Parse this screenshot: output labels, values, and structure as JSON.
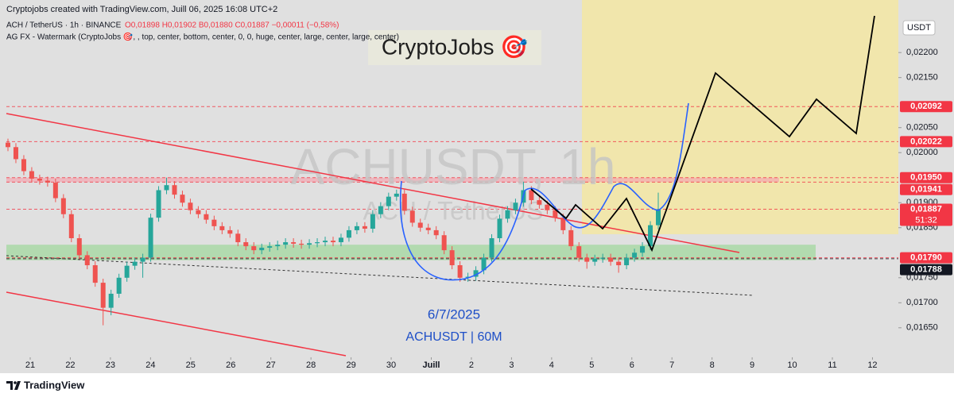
{
  "chart_data": {
    "type": "candlestick",
    "header": "Cryptojobs created with TradingView.com, Juill 06, 2025 16:08 UTC+2",
    "symbol_line": "ACH / TetherUS · 1h · BINANCE",
    "ohlc_line": "O0,01898  H0,01902  B0,01880  C0,01887  −0,00011 (−0,58%)",
    "indicator_line": "AG FX - Watermark (CryptoJobs 🎯, , top, center, bottom, center, 0, 0, huge, center, large, center, large, center)",
    "brand": "CryptoJobs 🎯",
    "watermark": "ACHUSDT, 1h",
    "watermark_sub": "ACH / TetherUS",
    "annotation_date": "6/7/2025",
    "annotation_symbol": "ACHUSDT | 60M",
    "currency": "USDT",
    "footer": "TradingView",
    "up_color": "#26a69a",
    "down_color": "#ef5350",
    "ylim": [
      0.01591,
      0.02305
    ],
    "yticks": [
      {
        "value": 0.022,
        "label": "0,02200"
      },
      {
        "value": 0.0215,
        "label": "0,02150"
      },
      {
        "value": 0.0205,
        "label": "0,02050"
      },
      {
        "value": 0.02,
        "label": "0,02000"
      },
      {
        "value": 0.019,
        "label": "0,01900"
      },
      {
        "value": 0.0185,
        "label": "0,01850"
      },
      {
        "value": 0.0175,
        "label": "0,01750"
      },
      {
        "value": 0.017,
        "label": "0,01700"
      },
      {
        "value": 0.0165,
        "label": "0,01650"
      }
    ],
    "categories": [
      "21",
      "22",
      "23",
      "24",
      "25",
      "26",
      "27",
      "28",
      "29",
      "30",
      "Juill",
      "2",
      "3",
      "4",
      "5",
      "6",
      "7",
      "8",
      "9",
      "10",
      "11",
      "12"
    ],
    "price_labels": [
      {
        "value": 0.02092,
        "label": "0,02092",
        "color": "#f23645"
      },
      {
        "value": 0.02022,
        "label": "0,02022",
        "color": "#f23645"
      },
      {
        "value": 0.0195,
        "label": "0,01950",
        "color": "#f23645"
      },
      {
        "value": 0.01941,
        "label": "0,01941",
        "color": "#f23645"
      },
      {
        "value": 0.01887,
        "label": "0,01887",
        "color": "#f23645",
        "countdown": "51:32"
      },
      {
        "value": 0.0179,
        "label": "0,01790",
        "color": "#f23645"
      },
      {
        "value": 0.01788,
        "label": "0,01788",
        "color": "#131722"
      }
    ],
    "target_zone": {
      "bottom": 0.01837,
      "color": "#f3e7a6"
    },
    "support_zone": {
      "top": 0.01816,
      "bottom": 0.01785,
      "color": "#a9d8a6"
    },
    "candles": [
      [
        0.0202,
        0.02028,
        0.02003,
        0.02011
      ],
      [
        0.02011,
        0.02019,
        0.01979,
        0.01987
      ],
      [
        0.01987,
        0.01995,
        0.01955,
        0.01963
      ],
      [
        0.01963,
        0.01971,
        0.0194,
        0.01948
      ],
      [
        0.01948,
        0.01956,
        0.01936,
        0.01944
      ],
      [
        0.01944,
        0.01952,
        0.01932,
        0.0194
      ],
      [
        0.0194,
        0.01948,
        0.01901,
        0.01909
      ],
      [
        0.01909,
        0.01917,
        0.01869,
        0.01877
      ],
      [
        0.01877,
        0.01885,
        0.01821,
        0.01829
      ],
      [
        0.01829,
        0.01837,
        0.01787,
        0.01795
      ],
      [
        0.01795,
        0.01803,
        0.01767,
        0.01775
      ],
      [
        0.01775,
        0.01783,
        0.01732,
        0.0174
      ],
      [
        0.0174,
        0.01748,
        0.01655,
        0.0169
      ],
      [
        0.0169,
        0.01726,
        0.01675,
        0.01718
      ],
      [
        0.01718,
        0.01758,
        0.0171,
        0.0175
      ],
      [
        0.0175,
        0.01782,
        0.01742,
        0.01774
      ],
      [
        0.01774,
        0.0179,
        0.01766,
        0.01782
      ],
      [
        0.01782,
        0.01798,
        0.0175,
        0.0179
      ],
      [
        0.0179,
        0.01878,
        0.01782,
        0.0187
      ],
      [
        0.0187,
        0.01933,
        0.01862,
        0.01925
      ],
      [
        0.01925,
        0.0195,
        0.01917,
        0.01935
      ],
      [
        0.01935,
        0.01943,
        0.01908,
        0.01916
      ],
      [
        0.01916,
        0.01924,
        0.01892,
        0.019
      ],
      [
        0.019,
        0.01908,
        0.01877,
        0.01885
      ],
      [
        0.01885,
        0.01893,
        0.01869,
        0.01877
      ],
      [
        0.01877,
        0.01885,
        0.01858,
        0.01866
      ],
      [
        0.01866,
        0.01874,
        0.01845,
        0.01853
      ],
      [
        0.01853,
        0.01861,
        0.01837,
        0.01845
      ],
      [
        0.01845,
        0.01853,
        0.0183,
        0.01838
      ],
      [
        0.01838,
        0.01846,
        0.01813,
        0.01821
      ],
      [
        0.01821,
        0.01829,
        0.01805,
        0.01813
      ],
      [
        0.01813,
        0.01821,
        0.01797,
        0.01805
      ],
      [
        0.01805,
        0.01818,
        0.01797,
        0.0181
      ],
      [
        0.0181,
        0.01821,
        0.01802,
        0.01813
      ],
      [
        0.01813,
        0.01824,
        0.01805,
        0.01816
      ],
      [
        0.01816,
        0.01829,
        0.01808,
        0.01821
      ],
      [
        0.01821,
        0.01829,
        0.0181,
        0.01818
      ],
      [
        0.01818,
        0.01826,
        0.01808,
        0.01816
      ],
      [
        0.01816,
        0.01827,
        0.01808,
        0.01819
      ],
      [
        0.01819,
        0.01829,
        0.01811,
        0.01821
      ],
      [
        0.01821,
        0.01832,
        0.01813,
        0.01824
      ],
      [
        0.01824,
        0.01832,
        0.01813,
        0.01821
      ],
      [
        0.01821,
        0.01838,
        0.01813,
        0.0183
      ],
      [
        0.0183,
        0.01853,
        0.01822,
        0.01845
      ],
      [
        0.01845,
        0.01861,
        0.01837,
        0.01853
      ],
      [
        0.01853,
        0.01861,
        0.0184,
        0.01848
      ],
      [
        0.01848,
        0.01885,
        0.0184,
        0.01877
      ],
      [
        0.01877,
        0.01901,
        0.01869,
        0.01893
      ],
      [
        0.01893,
        0.0192,
        0.01885,
        0.01912
      ],
      [
        0.01912,
        0.01926,
        0.01904,
        0.01918
      ],
      [
        0.01918,
        0.01926,
        0.01876,
        0.01884
      ],
      [
        0.01884,
        0.01892,
        0.01852,
        0.0186
      ],
      [
        0.0186,
        0.01868,
        0.01842,
        0.0185
      ],
      [
        0.0185,
        0.01858,
        0.01837,
        0.01845
      ],
      [
        0.01845,
        0.01853,
        0.01827,
        0.01835
      ],
      [
        0.01835,
        0.01843,
        0.01797,
        0.01805
      ],
      [
        0.01805,
        0.01813,
        0.01767,
        0.01775
      ],
      [
        0.01775,
        0.01783,
        0.01742,
        0.0175
      ],
      [
        0.0175,
        0.0176,
        0.01742,
        0.01752
      ],
      [
        0.01752,
        0.01773,
        0.01744,
        0.01765
      ],
      [
        0.01765,
        0.01798,
        0.01757,
        0.0179
      ],
      [
        0.0179,
        0.01837,
        0.01782,
        0.01829
      ],
      [
        0.01829,
        0.01876,
        0.01821,
        0.01868
      ],
      [
        0.01868,
        0.01893,
        0.0186,
        0.01885
      ],
      [
        0.01885,
        0.01908,
        0.01877,
        0.019
      ],
      [
        0.019,
        0.01942,
        0.01892,
        0.01925
      ],
      [
        0.01925,
        0.01933,
        0.01897,
        0.01905
      ],
      [
        0.01905,
        0.01913,
        0.01888,
        0.01896
      ],
      [
        0.01896,
        0.01904,
        0.01877,
        0.01885
      ],
      [
        0.01885,
        0.01893,
        0.01862,
        0.0187
      ],
      [
        0.0187,
        0.01878,
        0.01837,
        0.01845
      ],
      [
        0.01845,
        0.01853,
        0.01805,
        0.01813
      ],
      [
        0.01813,
        0.01821,
        0.01782,
        0.0179
      ],
      [
        0.0179,
        0.01798,
        0.01768,
        0.01782
      ],
      [
        0.01782,
        0.01796,
        0.01774,
        0.01788
      ],
      [
        0.01788,
        0.01798,
        0.0178,
        0.0179
      ],
      [
        0.0179,
        0.01798,
        0.01774,
        0.01782
      ],
      [
        0.01782,
        0.0179,
        0.0176,
        0.01775
      ],
      [
        0.01775,
        0.01798,
        0.01767,
        0.0179
      ],
      [
        0.0179,
        0.01808,
        0.01782,
        0.018
      ],
      [
        0.018,
        0.01821,
        0.01792,
        0.01813
      ],
      [
        0.01813,
        0.01863,
        0.01805,
        0.01855
      ],
      [
        0.01855,
        0.0192,
        0.01847,
        0.01887
      ]
    ]
  }
}
